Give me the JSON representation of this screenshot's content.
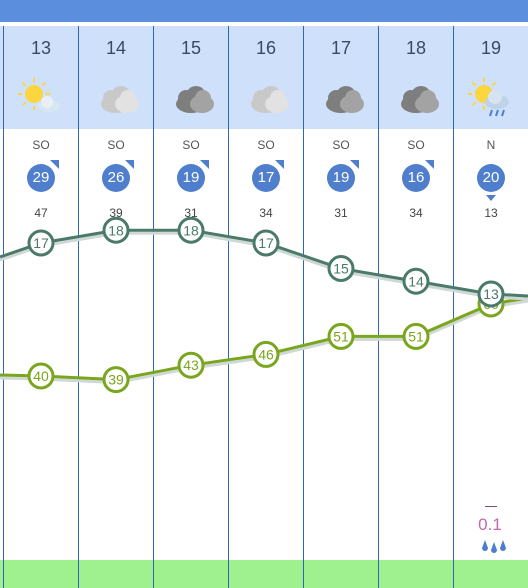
{
  "days": [
    {
      "day": "13",
      "icon": "sun-cloud-icon",
      "dir": "SO",
      "wind": "29",
      "gust": "47"
    },
    {
      "day": "14",
      "icon": "cloud-icon",
      "dir": "SO",
      "wind": "26",
      "gust": "39"
    },
    {
      "day": "15",
      "icon": "dark-cloud-icon",
      "dir": "SO",
      "wind": "19",
      "gust": "31"
    },
    {
      "day": "16",
      "icon": "cloud-icon",
      "dir": "SO",
      "wind": "17",
      "gust": "34"
    },
    {
      "day": "17",
      "icon": "dark-cloud-icon",
      "dir": "SO",
      "wind": "19",
      "gust": "31"
    },
    {
      "day": "18",
      "icon": "dark-cloud-icon",
      "dir": "SO",
      "wind": "16",
      "gust": "34"
    },
    {
      "day": "19",
      "icon": "sun-cloud-rain-icon",
      "dir": "N",
      "wind": "20",
      "gust": "13"
    }
  ],
  "precip": {
    "value": "0.1",
    "icon": "raindrops-icon"
  },
  "colors": {
    "accent": "#5b8fdd",
    "header": "#cfe0fb",
    "wind": "#4f7fcc",
    "temp": "#4b7a6b",
    "humidity": "#7aa51f",
    "footer": "#9ff08f",
    "precip": "#c36aa8"
  },
  "chart_data": {
    "type": "line",
    "categories": [
      "13",
      "14",
      "15",
      "16",
      "17",
      "18",
      "19"
    ],
    "series": [
      {
        "values": [
          17,
          18,
          18,
          17,
          15,
          14,
          13
        ]
      },
      {
        "values": [
          40,
          39,
          43,
          46,
          51,
          51,
          60
        ]
      }
    ],
    "grid": false
  }
}
